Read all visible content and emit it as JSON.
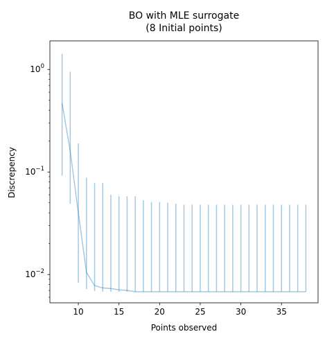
{
  "chart_data": {
    "type": "line",
    "title": "BO with MLE surrogate",
    "subtitle": "(8 Initial points)",
    "xlabel": "Points observed",
    "ylabel": "Discrepency",
    "yscale": "log",
    "xlim": [
      6.5,
      39.5
    ],
    "ylim": [
      0.0053,
      1.9
    ],
    "x_ticks": [
      10,
      15,
      20,
      25,
      30,
      35
    ],
    "y_major_ticks": [
      {
        "value": 0.01,
        "base": "10",
        "exp": "−2"
      },
      {
        "value": 0.1,
        "base": "10",
        "exp": "−1"
      },
      {
        "value": 1,
        "base": "10",
        "exp": "0"
      }
    ],
    "y_minor_ticks": [
      0.006,
      0.007,
      0.008,
      0.009,
      0.02,
      0.03,
      0.04,
      0.05,
      0.06,
      0.07,
      0.08,
      0.09,
      0.2,
      0.3,
      0.4,
      0.5,
      0.6,
      0.7,
      0.8,
      0.9
    ],
    "grid": false,
    "legend": "none",
    "series_color": "#1f77b4",
    "series_alpha": 0.4,
    "series": [
      {
        "x": [
          8,
          9,
          10,
          11,
          12,
          13,
          14,
          15,
          16,
          17,
          18,
          19,
          20,
          21,
          22,
          23,
          24,
          25,
          26,
          27,
          28,
          29,
          30,
          31,
          32,
          33,
          34,
          35,
          36,
          37,
          38
        ],
        "values": [
          0.47,
          0.16,
          0.04,
          0.0105,
          0.0078,
          0.0074,
          0.0073,
          0.0071,
          0.007,
          0.0068,
          0.0068,
          0.0068,
          0.0068,
          0.0068,
          0.0068,
          0.0068,
          0.0068,
          0.0068,
          0.0068,
          0.0068,
          0.0068,
          0.0068,
          0.0068,
          0.0068,
          0.0068,
          0.0068,
          0.0068,
          0.0068,
          0.0068,
          0.0068,
          0.0068
        ],
        "err_low": [
          0.092,
          0.049,
          0.0083,
          0.0072,
          0.0069,
          0.0068,
          0.0068,
          0.0068,
          0.0068,
          0.0068,
          0.0068,
          0.0068,
          0.0068,
          0.0068,
          0.0068,
          0.0068,
          0.0068,
          0.0068,
          0.0068,
          0.0068,
          0.0068,
          0.0068,
          0.0068,
          0.0068,
          0.0068,
          0.0068,
          0.0068,
          0.0068,
          0.0068,
          0.0068,
          0.0068
        ],
        "err_high": [
          1.42,
          0.95,
          0.19,
          0.088,
          0.078,
          0.078,
          0.06,
          0.058,
          0.058,
          0.058,
          0.053,
          0.051,
          0.051,
          0.05,
          0.049,
          0.048,
          0.048,
          0.048,
          0.048,
          0.048,
          0.048,
          0.048,
          0.048,
          0.048,
          0.048,
          0.048,
          0.048,
          0.048,
          0.048,
          0.048,
          0.048
        ]
      }
    ]
  }
}
